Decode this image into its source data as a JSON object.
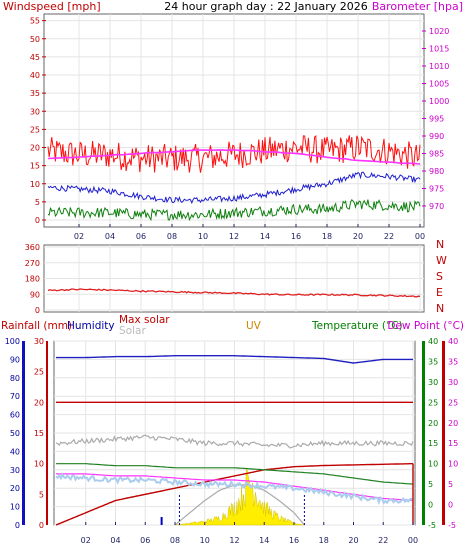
{
  "header": {
    "title": "24 hour graph day : 22 January 2026",
    "left_label": "Windspeed [mph]",
    "right_label": "Barometer [hpa]"
  },
  "colors": {
    "wind_axis": "#c00000",
    "baro_axis": "#cc00cc",
    "gust": "#ff1010",
    "avg_wind": "#2020d0",
    "low_wind": "#108010",
    "barometer": "#ff33ff",
    "direction": "#e02020",
    "rain_axis": "#c00000",
    "hum_axis": "#0000a0",
    "temp_axis": "#008000",
    "dew_axis": "#cc00cc",
    "uv": "#cc8800",
    "solar_fill": "#ffee00",
    "grid": "#e4e4e4",
    "tick": "#222266"
  },
  "chart_data": [
    {
      "type": "line",
      "id": "wind_baro",
      "x_tick_labels": [
        "02",
        "04",
        "06",
        "08",
        "10",
        "12",
        "14",
        "16",
        "18",
        "20",
        "22",
        "00"
      ],
      "ylim_left": [
        0,
        56
      ],
      "yticks_left": [
        0,
        5,
        10,
        15,
        20,
        25,
        30,
        35,
        40,
        45,
        50,
        55
      ],
      "ylim_right": [
        966,
        1024
      ],
      "yticks_right": [
        970,
        975,
        980,
        985,
        990,
        995,
        1000,
        1005,
        1010,
        1015,
        1020
      ],
      "x_hours": [
        0,
        2,
        4,
        6,
        8,
        10,
        12,
        14,
        16,
        18,
        20,
        22,
        24
      ],
      "series": [
        {
          "key": "gust",
          "axis": "left",
          "values": [
            19,
            18,
            18,
            17,
            17,
            17,
            18,
            19,
            20,
            19,
            20,
            19,
            17
          ],
          "noise": 4
        },
        {
          "key": "avg_wind",
          "axis": "left",
          "values": [
            9,
            8.5,
            8,
            6.5,
            5.5,
            5.5,
            6,
            7,
            8.5,
            10,
            12.5,
            12,
            11
          ],
          "noise": 0.8
        },
        {
          "key": "low_wind",
          "axis": "left",
          "values": [
            2,
            2,
            2,
            1.5,
            1.5,
            1.5,
            2,
            2.5,
            3,
            3,
            4.5,
            4,
            3.5
          ],
          "noise": 1.5
        },
        {
          "key": "barometer",
          "axis": "right",
          "values": [
            983.5,
            984,
            984.5,
            985,
            985.5,
            986,
            986,
            985.5,
            985,
            984,
            983,
            982.5,
            982
          ],
          "noise": 0.1
        }
      ]
    },
    {
      "type": "line",
      "id": "wind_direction",
      "ylim": [
        0,
        360
      ],
      "yticks": [
        0,
        90,
        180,
        270,
        360
      ],
      "ytick_labels": [
        "0",
        "90",
        "180",
        "270",
        "360"
      ],
      "compass_labels": [
        "N",
        "W",
        "S",
        "E",
        "N"
      ],
      "x_hours": [
        0,
        2,
        4,
        6,
        8,
        10,
        12,
        14,
        16,
        18,
        20,
        22,
        24
      ],
      "series": [
        {
          "key": "direction",
          "values": [
            112,
            118,
            114,
            108,
            104,
            100,
            96,
            90,
            87,
            88,
            86,
            82,
            78
          ],
          "noise": 4
        }
      ]
    },
    {
      "type": "line",
      "id": "rain_temp",
      "labels": {
        "rainfall": "Rainfall (mm)",
        "humidity": "Humidity",
        "max_solar": "Max solar",
        "solar": "Solar",
        "uv": "UV",
        "temperature": "Temperature (°C)",
        "dew_point": "Dew Point (°C)"
      },
      "ylim_humidity": [
        0,
        100
      ],
      "yticks_humidity": [
        0,
        10,
        20,
        30,
        40,
        50,
        60,
        70,
        80,
        90,
        100
      ],
      "ylim_rain": [
        0,
        30
      ],
      "yticks_rain": [
        0,
        5,
        10,
        15,
        20,
        25,
        30
      ],
      "ylim_temp": [
        -5,
        40
      ],
      "yticks_temp": [
        -5,
        0,
        5,
        10,
        15,
        20,
        25,
        30,
        35,
        40
      ],
      "x_hours": [
        0,
        2,
        4,
        6,
        8,
        10,
        12,
        14,
        16,
        18,
        20,
        22,
        24
      ],
      "series": [
        {
          "key": "humidity",
          "scale": "humidity",
          "values": [
            91,
            91,
            91.5,
            91.5,
            92,
            92,
            92,
            91.5,
            91,
            90.5,
            88,
            90,
            90
          ]
        },
        {
          "key": "rainfall",
          "scale": "rain",
          "values": [
            0,
            2,
            4,
            5,
            6,
            7,
            8,
            9,
            9.5,
            9.7,
            9.8,
            9.9,
            10
          ]
        },
        {
          "key": "max_solar_trace",
          "scale": "temp",
          "values": [
            25,
            25,
            25,
            25,
            25,
            25,
            25,
            25,
            25,
            25,
            25,
            25,
            25
          ]
        },
        {
          "key": "solar_trace",
          "scale": "temp",
          "values": [
            15,
            15.5,
            16,
            16.5,
            16,
            15,
            15,
            14.5,
            14.5,
            15,
            15,
            15,
            15
          ]
        },
        {
          "key": "temperature",
          "scale": "temp",
          "values": [
            10,
            10,
            9.5,
            9.5,
            9,
            9,
            9,
            8.5,
            8,
            7.5,
            6.5,
            5.5,
            5
          ]
        },
        {
          "key": "dew_point",
          "scale": "temp",
          "values": [
            7.5,
            7.5,
            7,
            7,
            6.5,
            6,
            6,
            5.5,
            4.5,
            3.5,
            2.5,
            1.5,
            1
          ]
        },
        {
          "key": "wind_chill",
          "scale": "temp",
          "values": [
            7,
            6.5,
            6,
            6,
            5.5,
            5,
            5,
            4.5,
            4,
            3,
            2,
            1,
            1
          ]
        }
      ],
      "solar_radiation": {
        "x_hours": [
          8,
          9,
          10,
          11,
          12,
          12.5,
          13,
          13.5,
          14,
          15,
          16,
          16.7
        ],
        "values_deg": [
          0,
          0.5,
          1,
          2,
          5,
          8,
          13,
          9,
          5,
          2,
          0.5,
          0
        ]
      },
      "max_solar_curve": {
        "x_hours": [
          8,
          9,
          10,
          11,
          12,
          13,
          14,
          15,
          16,
          16.7
        ],
        "values_deg": [
          -5,
          -2,
          1,
          3.5,
          4.8,
          4.8,
          3.5,
          1,
          -2,
          -5
        ]
      }
    }
  ]
}
